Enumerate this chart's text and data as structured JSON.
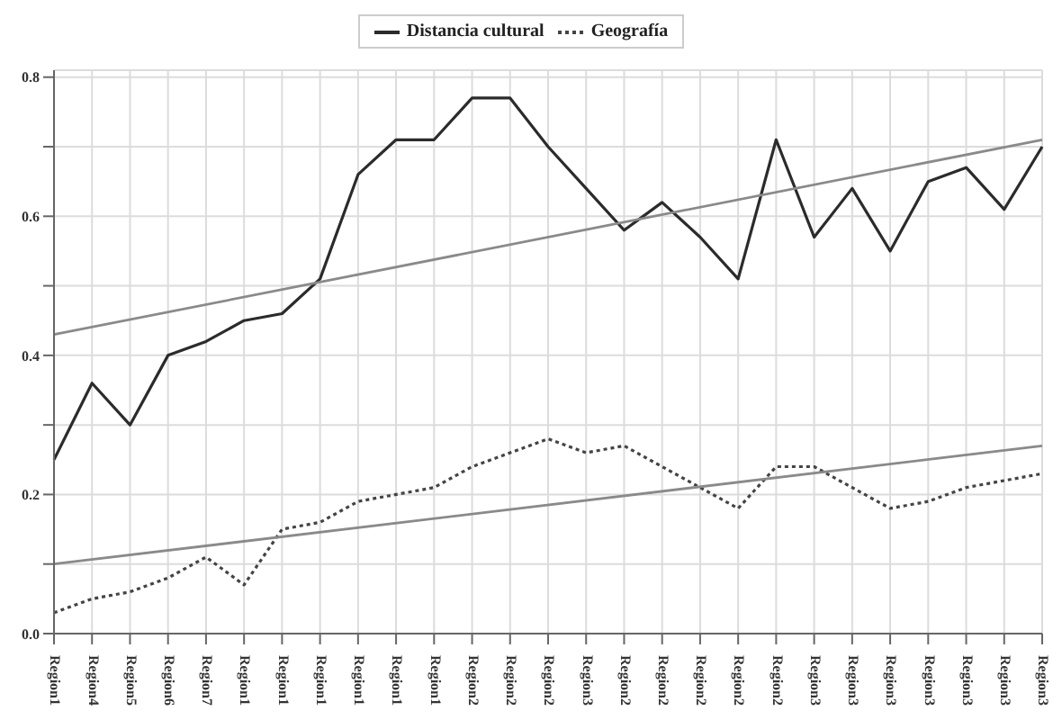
{
  "chart_data": {
    "type": "line",
    "categories": [
      "Region1",
      "Region4",
      "Region5",
      "Region6",
      "Region7",
      "Region1",
      "Region1",
      "Region1",
      "Region1",
      "Region1",
      "Region1",
      "Region2",
      "Region2",
      "Region2",
      "Region3",
      "Region2",
      "Region2",
      "Region2",
      "Region2",
      "Region2",
      "Region3",
      "Region3",
      "Region3",
      "Region3",
      "Region3",
      "Region3",
      "Region3"
    ],
    "series": [
      {
        "name": "Distancia cultural",
        "color": "#2b2b2b",
        "line_style": "solid",
        "values": [
          0.25,
          0.36,
          0.3,
          0.4,
          0.42,
          0.45,
          0.46,
          0.51,
          0.66,
          0.71,
          0.71,
          0.77,
          0.77,
          0.7,
          0.64,
          0.58,
          0.62,
          0.57,
          0.51,
          0.71,
          0.57,
          0.64,
          0.55,
          0.65,
          0.67,
          0.61,
          0.7
        ]
      },
      {
        "name": "Geografía",
        "color": "#444444",
        "line_style": "dotted",
        "values": [
          0.03,
          0.05,
          0.06,
          0.08,
          0.11,
          0.07,
          0.15,
          0.16,
          0.19,
          0.2,
          0.21,
          0.24,
          0.26,
          0.28,
          0.26,
          0.27,
          0.24,
          0.21,
          0.18,
          0.24,
          0.24,
          0.21,
          0.18,
          0.19,
          0.21,
          0.22,
          0.23
        ]
      },
      {
        "color": "#8a8a8a",
        "line_style": "solid",
        "values": [
          0.43,
          null,
          null,
          null,
          null,
          null,
          null,
          null,
          null,
          null,
          null,
          null,
          null,
          null,
          null,
          null,
          null,
          null,
          null,
          null,
          null,
          null,
          null,
          null,
          null,
          null,
          0.71
        ]
      },
      {
        "color": "#8a8a8a",
        "line_style": "solid",
        "values": [
          0.1,
          null,
          null,
          null,
          null,
          null,
          null,
          null,
          null,
          null,
          null,
          null,
          null,
          null,
          null,
          null,
          null,
          null,
          null,
          null,
          null,
          null,
          null,
          null,
          null,
          null,
          0.27
        ]
      }
    ],
    "ylim": [
      0,
      0.81
    ],
    "yticks": [
      {
        "value": 0,
        "label": "0.0"
      },
      {
        "value": 0.1,
        "label": null
      },
      {
        "value": 0.2,
        "label": "0.2"
      },
      {
        "value": 0.3,
        "label": null
      },
      {
        "value": 0.4,
        "label": "0.4"
      },
      {
        "value": 0.5,
        "label": null
      },
      {
        "value": 0.6,
        "label": "0.6"
      },
      {
        "value": 0.7,
        "label": null
      },
      {
        "value": 0.8,
        "label": "0.8"
      }
    ],
    "grid": true,
    "legend": "top",
    "marker": "none"
  }
}
